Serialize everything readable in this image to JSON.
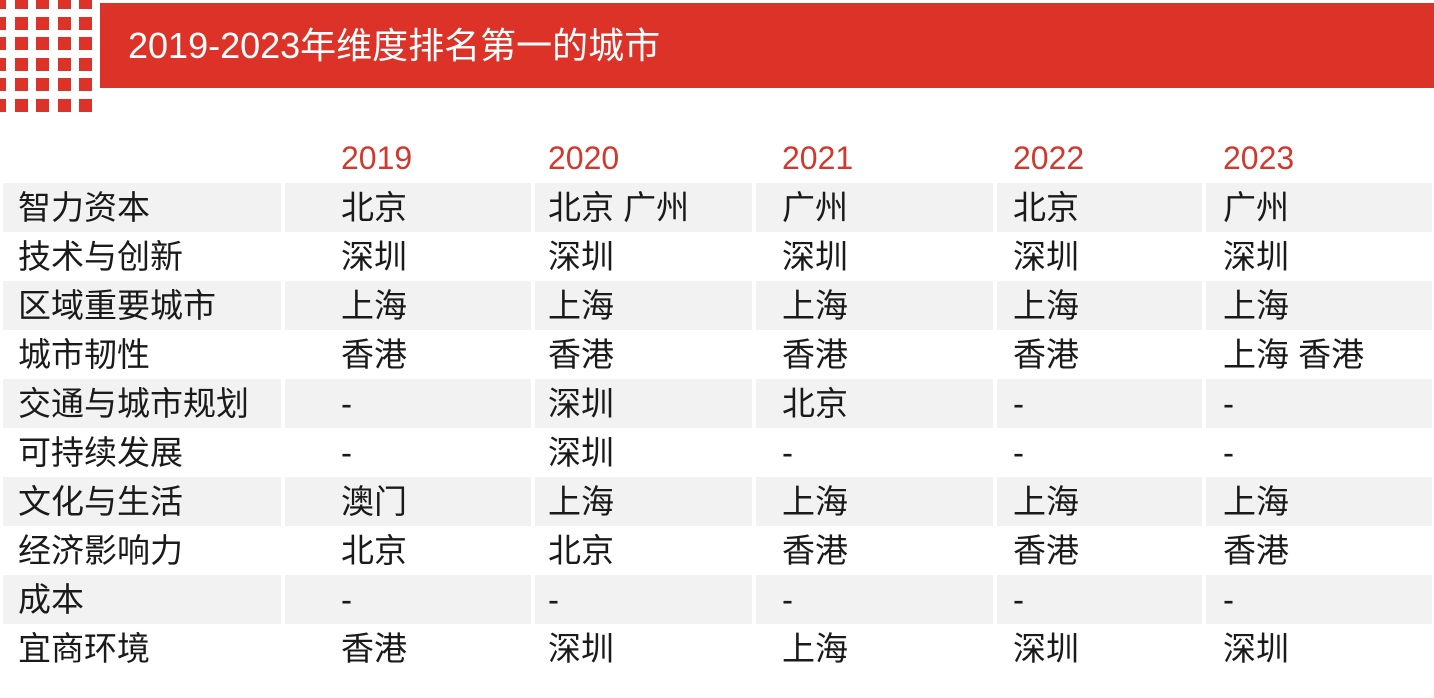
{
  "header": {
    "title": "2019-2023年维度排名第一的城市"
  },
  "theme": {
    "banner_red": "#dc3228",
    "year_red": "#d4372c",
    "row_alt_gray": "#f2f2f2",
    "text_color": "#1a1a1a"
  },
  "decor": {
    "dot_grid": {
      "rows": 6,
      "cols": 5
    }
  },
  "table": {
    "year_headers": [
      "2019",
      "2020",
      "2021",
      "2022",
      "2023"
    ],
    "rows": [
      {
        "label": "智力资本",
        "values": [
          "北京",
          "北京 广州",
          "广州",
          "北京",
          "广州"
        ]
      },
      {
        "label": "技术与创新",
        "values": [
          "深圳",
          "深圳",
          "深圳",
          "深圳",
          "深圳"
        ]
      },
      {
        "label": "区域重要城市",
        "values": [
          "上海",
          "上海",
          "上海",
          "上海",
          "上海"
        ]
      },
      {
        "label": "城市韧性",
        "values": [
          "香港",
          "香港",
          "香港",
          "香港",
          "上海 香港"
        ]
      },
      {
        "label": "交通与城市规划",
        "values": [
          "-",
          "深圳",
          "北京",
          "-",
          "-"
        ]
      },
      {
        "label": "可持续发展",
        "values": [
          "-",
          "深圳",
          "-",
          "-",
          "-"
        ]
      },
      {
        "label": "文化与生活",
        "values": [
          "澳门",
          "上海",
          "上海",
          "上海",
          "上海"
        ]
      },
      {
        "label": "经济影响力",
        "values": [
          "北京",
          "北京",
          "香港",
          "香港",
          "香港"
        ]
      },
      {
        "label": "成本",
        "values": [
          "-",
          "-",
          "-",
          "-",
          "-"
        ]
      },
      {
        "label": "宜商环境",
        "values": [
          "香港",
          "深圳",
          "上海",
          "深圳",
          "深圳"
        ]
      }
    ]
  }
}
